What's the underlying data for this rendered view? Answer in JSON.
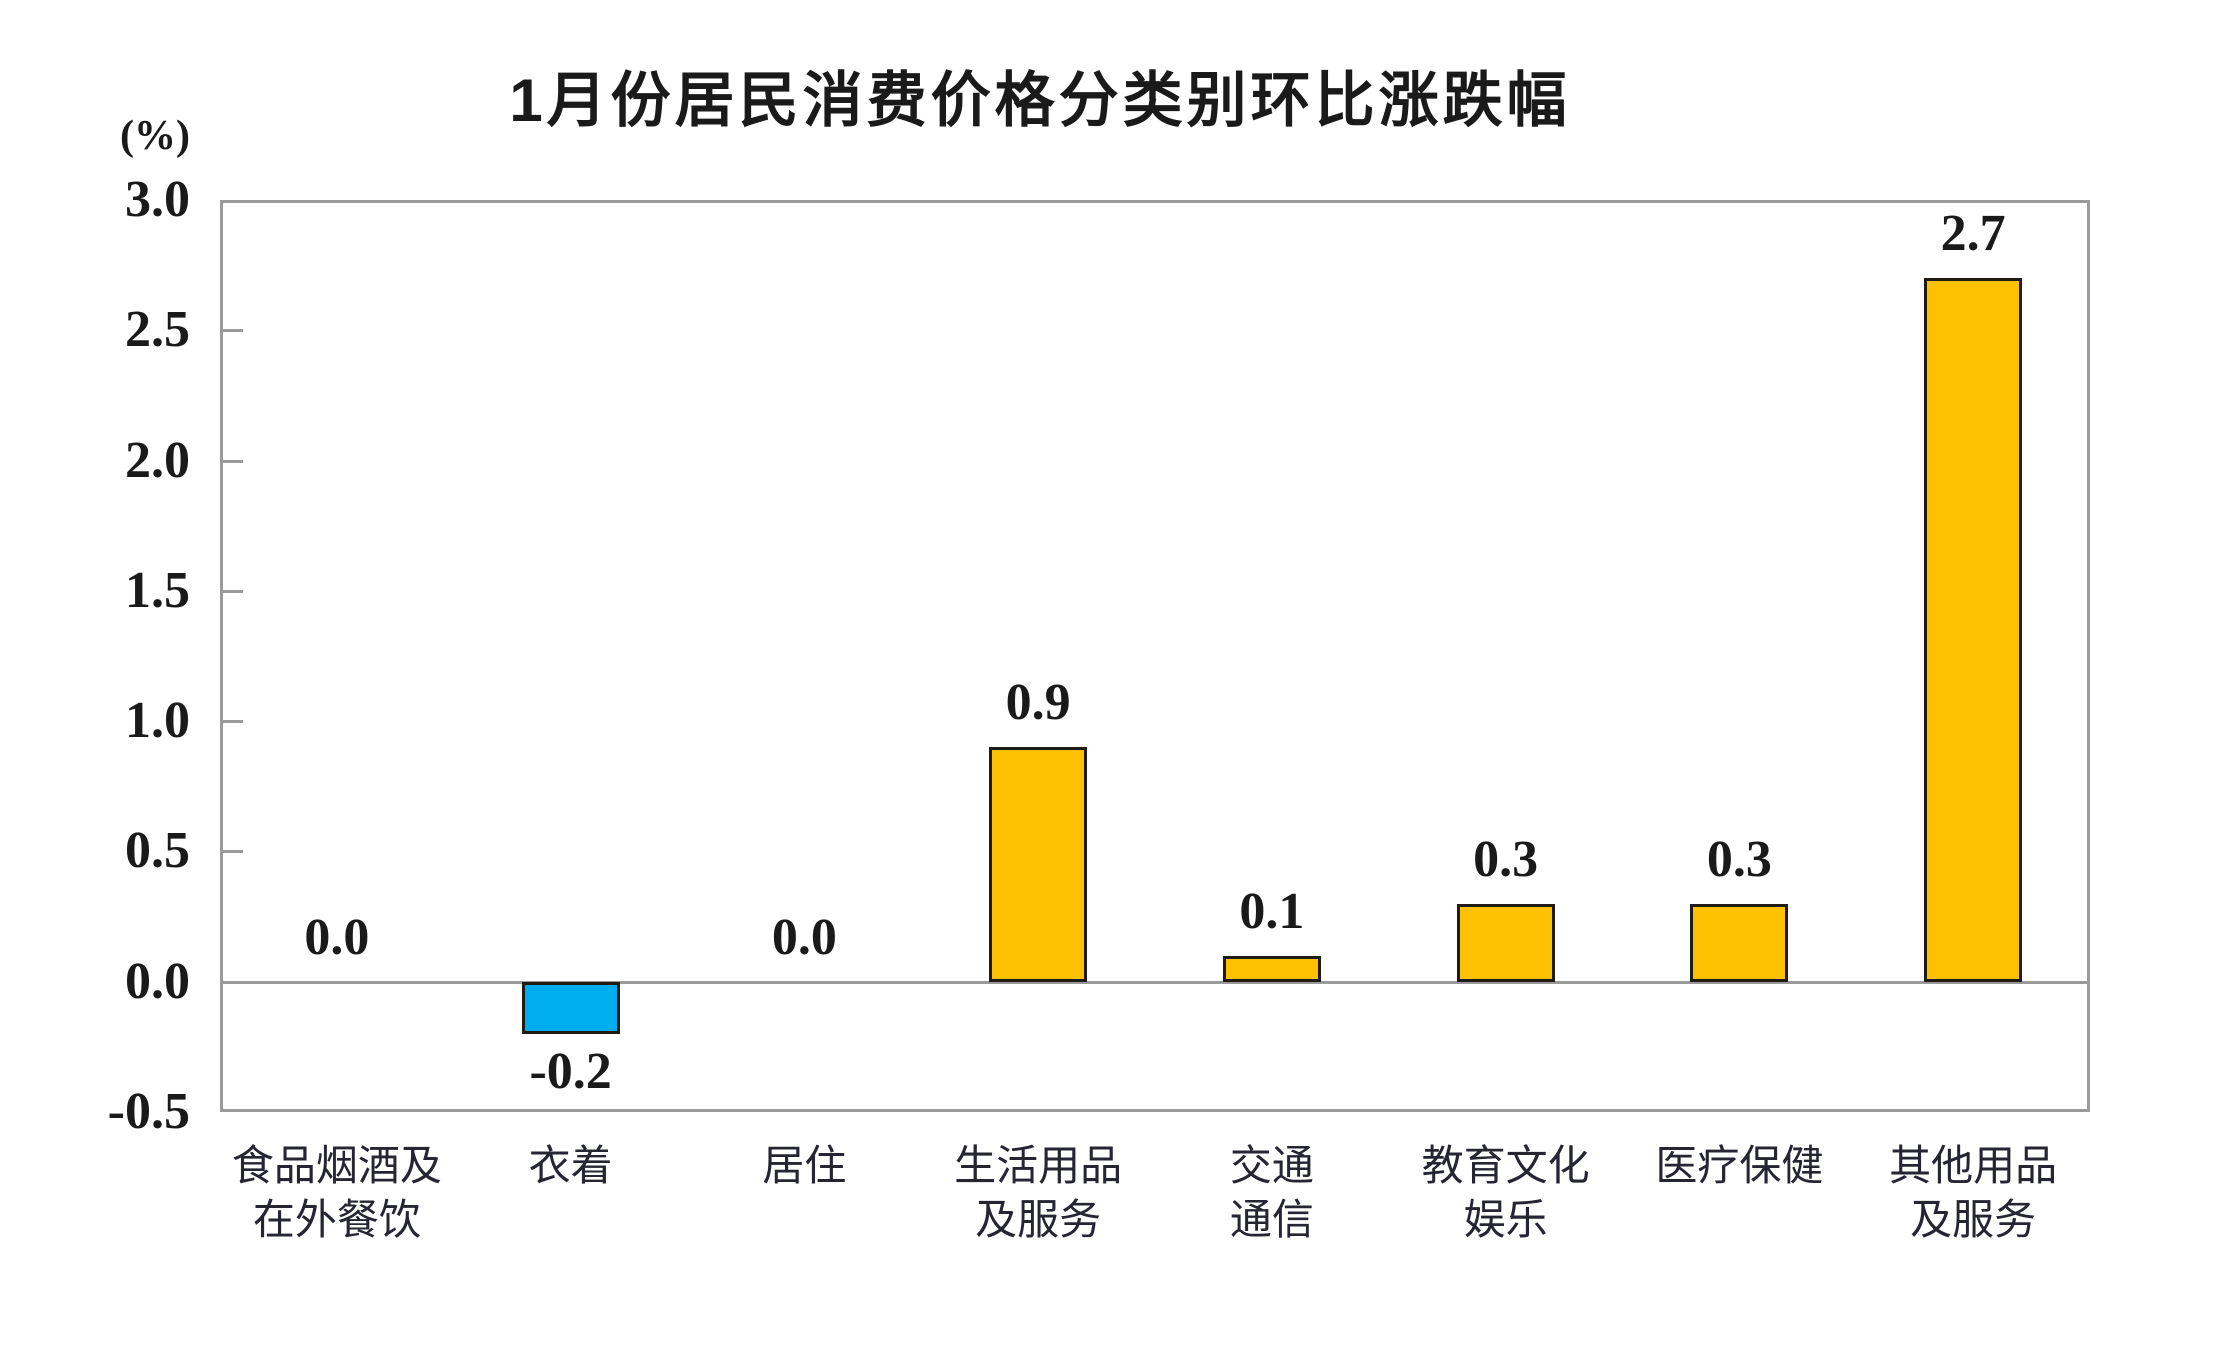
{
  "page": {
    "background": "#FFFFFF"
  },
  "chart_data": {
    "type": "bar",
    "title": "1月份居民消费价格分类别环比涨跌幅",
    "y_unit_label": "(%)",
    "categories": [
      "食品烟酒及\n在外餐饮",
      "衣着",
      "居住",
      "生活用品\n及服务",
      "交通\n通信",
      "教育文化\n娱乐",
      "医疗保健",
      "其他用品\n及服务"
    ],
    "values": [
      0.0,
      -0.2,
      0.0,
      0.9,
      0.1,
      0.3,
      0.3,
      2.7
    ],
    "value_labels": [
      "0.0",
      "-0.2",
      "0.0",
      "0.9",
      "0.1",
      "0.3",
      "0.3",
      "2.7"
    ],
    "yticks": [
      3.0,
      2.5,
      2.0,
      1.5,
      1.0,
      0.5,
      0.0,
      -0.5
    ],
    "ytick_labels": [
      "3.0",
      "2.5",
      "2.0",
      "1.5",
      "1.0",
      "0.5",
      "0.0",
      "-0.5"
    ],
    "ylim": [
      -0.5,
      3.0
    ],
    "grid": false,
    "legend": "none",
    "colors": {
      "positive_bar": "#FDC101",
      "negative_bar": "#00AEEF",
      "bar_border": "#1F1B17",
      "axis": "#9A9A9A",
      "text": "#1A1A1A"
    }
  }
}
